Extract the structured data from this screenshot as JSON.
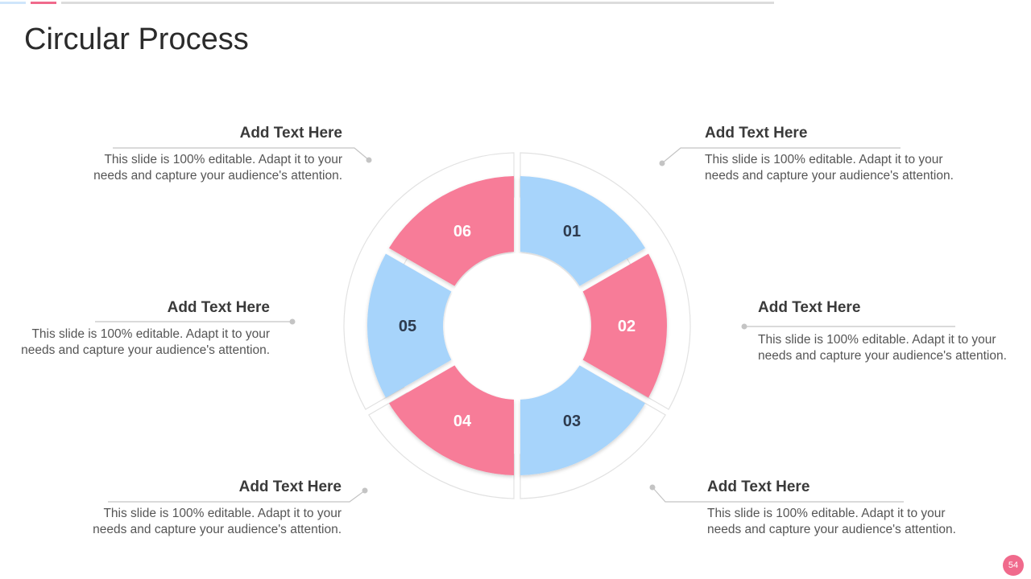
{
  "title": "Circular Process",
  "page_number": "54",
  "colors": {
    "pink": "#f77b98",
    "blue": "#a7d4fb",
    "ring": "#ffffff",
    "ring_stroke": "#e2e2e2",
    "connector": "#c4c4c4",
    "accent": "#f06a8c",
    "label_on_pink": "#ffffff",
    "label_on_blue": "#2e3b4e"
  },
  "segments": [
    {
      "label": "01",
      "color": "blue"
    },
    {
      "label": "02",
      "color": "pink"
    },
    {
      "label": "03",
      "color": "blue"
    },
    {
      "label": "04",
      "color": "pink"
    },
    {
      "label": "05",
      "color": "blue"
    },
    {
      "label": "06",
      "color": "pink"
    }
  ],
  "callouts": [
    {
      "heading": "Add Text Here",
      "body_line1": "This slide is 100% editable. Adapt it to your",
      "body_line2": "needs and capture your audience's attention."
    },
    {
      "heading": "Add Text Here",
      "body_line1": "This slide is 100% editable. Adapt it to your",
      "body_line2": "needs and capture your audience's attention."
    },
    {
      "heading": "Add Text Here",
      "body_line1": "This slide is 100% editable. Adapt it to your",
      "body_line2": "needs and capture your audience's attention."
    },
    {
      "heading": "Add Text Here",
      "body_line1": "This slide is 100% editable. Adapt it to your",
      "body_line2": "needs and capture your audience's attention."
    },
    {
      "heading": "Add Text Here",
      "body_line1": "This slide is 100% editable. Adapt it to your",
      "body_line2": "needs and capture your audience's attention."
    },
    {
      "heading": "Add Text Here",
      "body_line1": "This slide is 100% editable. Adapt it to your",
      "body_line2": "needs and capture your audience's attention."
    }
  ]
}
